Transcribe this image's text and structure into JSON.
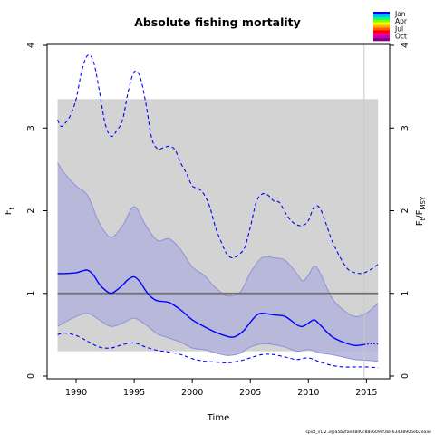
{
  "chart_data": {
    "type": "line",
    "title": "Absolute fishing mortality",
    "xlabel": "Time",
    "ylabel_left": "F",
    "ylabel_left_sub": "t",
    "ylabel_right_main": "F",
    "ylabel_right_sub": "t",
    "ylabel_right_den_main": "F",
    "ylabel_right_den_sub": "MSY",
    "xlim": [
      1987.5,
      2017.0
    ],
    "ylim": [
      0,
      4
    ],
    "x_ticks": [
      1990,
      1995,
      2000,
      2005,
      2010,
      2015
    ],
    "x_tick_labels": [
      "1990",
      "1995",
      "2000",
      "2005",
      "2010",
      "2015"
    ],
    "y_ticks": [
      0,
      1,
      2,
      3,
      4
    ],
    "y_tick_labels": [
      "0",
      "1",
      "2",
      "3",
      "4"
    ],
    "y_ticks_right": [
      0,
      1,
      2,
      3,
      4
    ],
    "y_tick_labels_right": [
      "0",
      "1",
      "2",
      "3",
      "4"
    ],
    "fmsy_ci_band": {
      "x": [
        1988.4,
        2016.0
      ],
      "y": [
        0.3,
        3.35
      ]
    },
    "fmsy_line": 1.0,
    "vline_x": 2014.8,
    "series": [
      {
        "name": "",
        "role": "estimate",
        "x": [
          1988.4,
          1989,
          1990,
          1990.5,
          1991,
          1991.5,
          1992,
          1992.5,
          1993,
          1993.5,
          1994,
          1994.5,
          1995,
          1995.5,
          1996,
          1996.5,
          1997,
          1998,
          1999,
          2000,
          2001,
          2002,
          2003,
          2003.5,
          2004,
          2004.5,
          2005,
          2005.5,
          2006,
          2007,
          2008,
          2009,
          2009.5,
          2010,
          2010.5,
          2011,
          2012,
          2013,
          2014,
          2014.8
        ],
        "y": [
          1.24,
          1.24,
          1.25,
          1.27,
          1.28,
          1.22,
          1.11,
          1.04,
          1.0,
          1.04,
          1.1,
          1.17,
          1.2,
          1.14,
          1.03,
          0.95,
          0.91,
          0.89,
          0.8,
          0.68,
          0.6,
          0.53,
          0.48,
          0.47,
          0.5,
          0.56,
          0.65,
          0.73,
          0.76,
          0.74,
          0.72,
          0.62,
          0.6,
          0.64,
          0.68,
          0.62,
          0.48,
          0.41,
          0.37,
          0.38
        ]
      },
      {
        "name": "",
        "role": "ci_upper",
        "x": [
          1988.4,
          1989,
          1990,
          1991,
          1992,
          1993,
          1994,
          1995,
          1996,
          1997,
          1998,
          1999,
          2000,
          2001,
          2002,
          2003,
          2004,
          2004.5,
          2005,
          2006,
          2007,
          2008,
          2009,
          2009.5,
          2010,
          2010.5,
          2011,
          2012,
          2013,
          2014,
          2015,
          2016.0
        ],
        "y": [
          2.58,
          2.45,
          2.3,
          2.18,
          1.85,
          1.68,
          1.82,
          2.05,
          1.82,
          1.64,
          1.66,
          1.53,
          1.32,
          1.22,
          1.07,
          0.97,
          1.0,
          1.1,
          1.25,
          1.43,
          1.43,
          1.4,
          1.24,
          1.15,
          1.22,
          1.33,
          1.25,
          0.95,
          0.8,
          0.72,
          0.76,
          0.88
        ]
      },
      {
        "name": "",
        "role": "ci_lower",
        "x": [
          1988.4,
          1989,
          1990,
          1991,
          1992,
          1993,
          1994,
          1995,
          1996,
          1997,
          1998,
          1999,
          2000,
          2001,
          2002,
          2003,
          2004,
          2005,
          2006,
          2007,
          2008,
          2009,
          2010,
          2011,
          2012,
          2013,
          2014,
          2015,
          2016.0
        ],
        "y": [
          0.6,
          0.65,
          0.72,
          0.76,
          0.68,
          0.6,
          0.64,
          0.7,
          0.62,
          0.51,
          0.46,
          0.41,
          0.34,
          0.32,
          0.28,
          0.25,
          0.27,
          0.35,
          0.39,
          0.38,
          0.35,
          0.3,
          0.32,
          0.28,
          0.26,
          0.23,
          0.2,
          0.19,
          0.18
        ]
      },
      {
        "name": "",
        "role": "upper_dashed",
        "x": [
          1988.4,
          1988.7,
          1989,
          1989.5,
          1990,
          1990.5,
          1991,
          1991.5,
          1992,
          1992.5,
          1993,
          1993.5,
          1994,
          1994.5,
          1995,
          1995.5,
          1996,
          1996.5,
          1997,
          1997.5,
          1998,
          1998.5,
          1999,
          1999.5,
          2000,
          2000.5,
          2001,
          2001.5,
          2002,
          2002.5,
          2003,
          2003.5,
          2004,
          2004.5,
          2005,
          2005.5,
          2006,
          2006.5,
          2007,
          2007.5,
          2008,
          2008.5,
          2009,
          2009.5,
          2010,
          2010.5,
          2011,
          2011.5,
          2012,
          2012.5,
          2013,
          2013.5,
          2014,
          2014.5,
          2015,
          2015.5,
          2016.0
        ],
        "y": [
          3.1,
          3.02,
          3.05,
          3.15,
          3.35,
          3.7,
          3.88,
          3.8,
          3.45,
          3.05,
          2.9,
          2.97,
          3.1,
          3.45,
          3.68,
          3.62,
          3.3,
          2.88,
          2.75,
          2.76,
          2.78,
          2.74,
          2.58,
          2.45,
          2.3,
          2.27,
          2.2,
          2.05,
          1.8,
          1.62,
          1.47,
          1.43,
          1.47,
          1.55,
          1.8,
          2.1,
          2.2,
          2.19,
          2.12,
          2.1,
          1.98,
          1.88,
          1.83,
          1.82,
          1.88,
          2.05,
          2.03,
          1.85,
          1.65,
          1.5,
          1.37,
          1.28,
          1.25,
          1.24,
          1.26,
          1.3,
          1.35
        ]
      },
      {
        "name": "",
        "role": "lower_dashed",
        "x": [
          1988.4,
          1989,
          1990,
          1991,
          1992,
          1993,
          1994,
          1995,
          1996,
          1997,
          1998,
          1999,
          2000,
          2001,
          2002,
          2003,
          2004,
          2005,
          2006,
          2007,
          2008,
          2009,
          2010,
          2011,
          2012,
          2013,
          2014,
          2015,
          2016.0
        ],
        "y": [
          0.5,
          0.52,
          0.49,
          0.42,
          0.35,
          0.34,
          0.38,
          0.4,
          0.35,
          0.31,
          0.29,
          0.26,
          0.21,
          0.18,
          0.17,
          0.16,
          0.18,
          0.22,
          0.26,
          0.26,
          0.23,
          0.2,
          0.22,
          0.17,
          0.13,
          0.11,
          0.11,
          0.11,
          0.1
        ]
      },
      {
        "name": "",
        "role": "prediction",
        "x": [
          2014.8,
          2015.3,
          2016.0
        ],
        "y": [
          0.38,
          0.39,
          0.39
        ]
      }
    ],
    "season_legend": {
      "labels": [
        "Jan",
        "Apr",
        "Jul",
        "Oct"
      ],
      "colors": [
        "#0000ff",
        "#00b4ff",
        "#00ff80",
        "#7fff00",
        "#ffff00",
        "#ffb000",
        "#ff6000",
        "#ff0000",
        "#ff0080",
        "#c000c0",
        "#800080"
      ]
    },
    "footnote": "spict_v1.2.3@a5b2fae48d0c88c609cf38463438905eb2eaae",
    "colors": {
      "band_gray": "#d3d3d3",
      "ci_fill": "#b3b3dc",
      "ci_edge": "#9090d8",
      "line_blue": "#0000ff",
      "fmsy_line": "#707070",
      "vline": "#c8c8c8"
    }
  }
}
